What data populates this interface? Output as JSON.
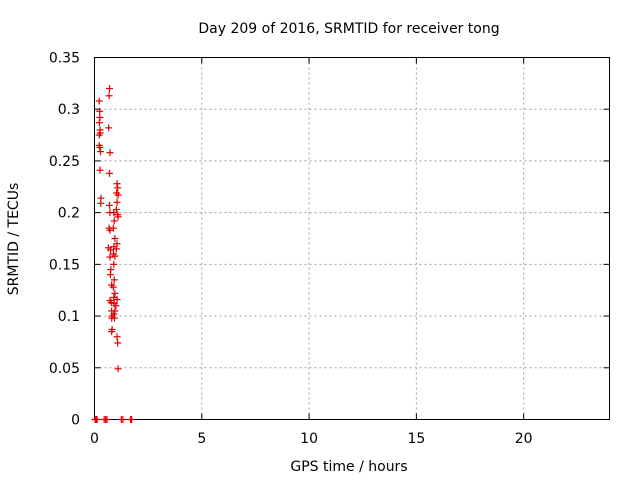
{
  "chart_data": {
    "type": "scatter",
    "title": "Day 209 of 2016, SRMTID for receiver tong",
    "xlabel": "GPS time / hours",
    "ylabel": "SRMTID / TECUs",
    "xlim": [
      0,
      24
    ],
    "ylim": [
      0,
      0.35
    ],
    "xticks": [
      0,
      5,
      10,
      15,
      20
    ],
    "xtick_labels": [
      "0",
      "5",
      "10",
      "15",
      "20"
    ],
    "yticks": [
      0,
      0.05,
      0.1,
      0.15,
      0.2,
      0.25,
      0.3,
      0.35
    ],
    "ytick_labels": [
      "0",
      "0.05",
      "0.1",
      "0.15",
      "0.2",
      "0.25",
      "0.3",
      "0.35"
    ],
    "grid": true,
    "marker": "+",
    "color": "#e00000",
    "series": [
      {
        "name": "SRMTID",
        "points": [
          [
            0.03,
            0.0
          ],
          [
            0.08,
            0.0
          ],
          [
            0.12,
            0.0
          ],
          [
            0.45,
            0.0
          ],
          [
            0.52,
            0.0
          ],
          [
            0.58,
            0.0
          ],
          [
            1.25,
            0.0
          ],
          [
            1.32,
            0.0
          ],
          [
            1.68,
            0.0
          ],
          [
            1.73,
            0.0
          ],
          [
            0.22,
            0.308
          ],
          [
            0.24,
            0.298
          ],
          [
            0.25,
            0.292
          ],
          [
            0.23,
            0.287
          ],
          [
            0.26,
            0.28
          ],
          [
            0.22,
            0.275
          ],
          [
            0.27,
            0.277
          ],
          [
            0.22,
            0.265
          ],
          [
            0.25,
            0.263
          ],
          [
            0.28,
            0.259
          ],
          [
            0.26,
            0.241
          ],
          [
            0.3,
            0.214
          ],
          [
            0.29,
            0.209
          ],
          [
            0.7,
            0.32
          ],
          [
            0.68,
            0.313
          ],
          [
            0.66,
            0.282
          ],
          [
            0.72,
            0.258
          ],
          [
            0.7,
            0.238
          ],
          [
            0.7,
            0.207
          ],
          [
            0.72,
            0.2
          ],
          [
            0.68,
            0.185
          ],
          [
            0.72,
            0.183
          ],
          [
            0.65,
            0.166
          ],
          [
            0.75,
            0.164
          ],
          [
            0.72,
            0.157
          ],
          [
            0.76,
            0.145
          ],
          [
            0.74,
            0.14
          ],
          [
            0.8,
            0.13
          ],
          [
            0.72,
            0.115
          ],
          [
            0.78,
            0.113
          ],
          [
            0.8,
            0.105
          ],
          [
            0.82,
            0.1
          ],
          [
            0.8,
            0.098
          ],
          [
            0.82,
            0.087
          ],
          [
            0.8,
            0.085
          ],
          [
            0.9,
            0.2
          ],
          [
            0.92,
            0.192
          ],
          [
            0.88,
            0.185
          ],
          [
            0.95,
            0.175
          ],
          [
            0.9,
            0.167
          ],
          [
            0.88,
            0.16
          ],
          [
            0.95,
            0.158
          ],
          [
            0.9,
            0.15
          ],
          [
            0.92,
            0.135
          ],
          [
            0.88,
            0.128
          ],
          [
            0.95,
            0.122
          ],
          [
            0.9,
            0.118
          ],
          [
            0.92,
            0.112
          ],
          [
            0.95,
            0.105
          ],
          [
            0.9,
            0.102
          ],
          [
            0.93,
            0.098
          ],
          [
            1.05,
            0.228
          ],
          [
            1.08,
            0.224
          ],
          [
            1.03,
            0.219
          ],
          [
            1.1,
            0.217
          ],
          [
            1.05,
            0.21
          ],
          [
            1.02,
            0.203
          ],
          [
            1.08,
            0.198
          ],
          [
            1.1,
            0.196
          ],
          [
            1.05,
            0.17
          ],
          [
            1.02,
            0.165
          ],
          [
            1.05,
            0.116
          ],
          [
            1.0,
            0.11
          ],
          [
            1.05,
            0.08
          ],
          [
            1.08,
            0.074
          ],
          [
            1.1,
            0.049
          ]
        ]
      }
    ]
  }
}
